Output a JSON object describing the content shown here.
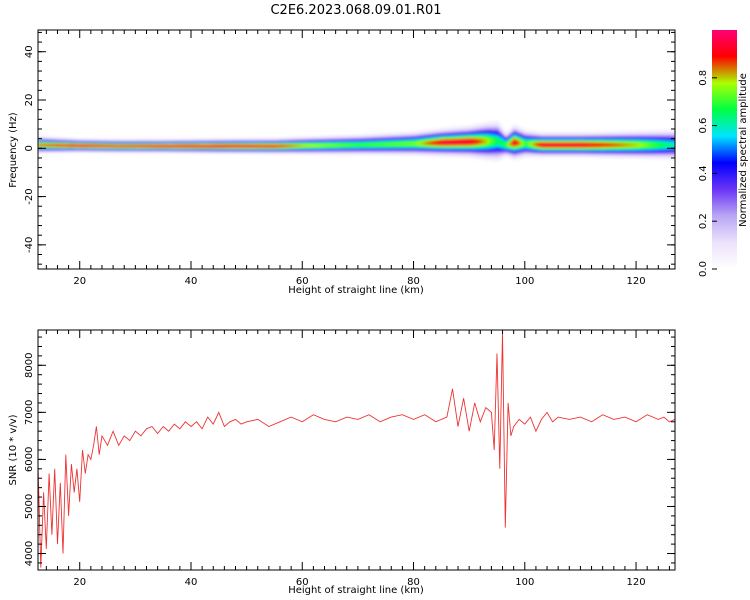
{
  "title": "C2E6.2023.068.09.01.R01",
  "chart_data": [
    {
      "type": "heatmap",
      "xlabel": "Height of straight line (km)",
      "ylabel": "Frequency (Hz)",
      "xlim": [
        12.5,
        127
      ],
      "ylim": [
        -50,
        49
      ],
      "xticks": [
        20,
        40,
        60,
        80,
        100,
        120
      ],
      "yticks": [
        -40,
        -20,
        0,
        20,
        40
      ],
      "grid": false,
      "colorbar": {
        "label": "Normalized spectral amplitude",
        "range": [
          0,
          1
        ],
        "ticks": [
          "0.0",
          "0.2",
          "0.4",
          "0.6",
          "0.8"
        ],
        "colormap": [
          "#ffffff",
          "#ece2fb",
          "#b9a6f4",
          "#6a34f6",
          "#0000ff",
          "#00e4ff",
          "#00ff44",
          "#aaff00",
          "#ff0000",
          "#ff0077"
        ]
      },
      "band": {
        "x": [
          12.5,
          20,
          27,
          35,
          45,
          55,
          60,
          70,
          80,
          85,
          90,
          93,
          95,
          96.5,
          98,
          100,
          103,
          110,
          120,
          127
        ],
        "center_hz": [
          1.5,
          1.2,
          1.0,
          1.0,
          1.0,
          1.0,
          1.2,
          1.5,
          2.0,
          2.5,
          2.8,
          3.0,
          3.0,
          1.5,
          2.5,
          2.0,
          1.5,
          1.5,
          1.5,
          1.5
        ],
        "half_width_hz": [
          2.5,
          2.0,
          2.0,
          2.0,
          2.2,
          2.3,
          2.6,
          3.0,
          3.5,
          4.0,
          4.5,
          5.5,
          6.0,
          3.5,
          5.0,
          4.0,
          3.5,
          3.5,
          4.0,
          4.5
        ],
        "peak_amplitude": [
          0.85,
          0.95,
          0.9,
          0.95,
          0.95,
          0.92,
          0.8,
          0.7,
          0.75,
          0.95,
          0.95,
          0.8,
          0.65,
          0.7,
          0.95,
          0.7,
          0.95,
          0.95,
          0.8,
          0.6
        ]
      }
    },
    {
      "type": "line",
      "xlabel": "Height of straight line (km)",
      "ylabel": "SNR (10 * v/v)",
      "xlim": [
        12.5,
        127
      ],
      "ylim": [
        3650,
        8750
      ],
      "xticks": [
        20,
        40,
        60,
        80,
        100,
        120
      ],
      "yticks": [
        4000,
        5000,
        6000,
        7000,
        8000
      ],
      "grid": false,
      "series": [
        {
          "color": "#ee3333",
          "x": [
            12.5,
            13,
            13.5,
            14,
            14.5,
            15,
            15.5,
            16,
            16.5,
            17,
            17.5,
            18,
            18.5,
            19,
            19.5,
            20,
            20.5,
            21,
            21.5,
            22,
            22.5,
            23,
            23.5,
            24,
            25,
            26,
            27,
            28,
            29,
            30,
            31,
            32,
            33,
            34,
            35,
            36,
            37,
            38,
            39,
            40,
            41,
            42,
            43,
            44,
            45,
            46,
            47,
            48,
            49,
            50,
            52,
            54,
            56,
            58,
            60,
            62,
            64,
            66,
            68,
            70,
            72,
            74,
            76,
            78,
            80,
            82,
            84,
            86,
            87,
            88,
            89,
            90,
            91,
            92,
            93,
            94,
            94.5,
            95,
            95.5,
            96,
            96.5,
            97,
            97.5,
            98,
            99,
            100,
            101,
            102,
            103,
            104,
            105,
            106,
            108,
            110,
            112,
            114,
            116,
            118,
            120,
            122,
            124,
            125,
            126,
            127
          ],
          "y": [
            5900,
            3700,
            5300,
            4100,
            5700,
            4400,
            5800,
            4200,
            5500,
            4000,
            6100,
            4800,
            5900,
            5300,
            5800,
            5100,
            6200,
            5700,
            6100,
            6000,
            6300,
            6700,
            6100,
            6500,
            6300,
            6600,
            6300,
            6500,
            6400,
            6600,
            6500,
            6650,
            6700,
            6550,
            6700,
            6600,
            6750,
            6650,
            6800,
            6700,
            6800,
            6650,
            6900,
            6750,
            7000,
            6700,
            6800,
            6850,
            6750,
            6800,
            6850,
            6700,
            6800,
            6900,
            6800,
            6950,
            6850,
            6800,
            6900,
            6850,
            6950,
            6800,
            6900,
            6950,
            6850,
            6950,
            6800,
            6900,
            7500,
            6700,
            7300,
            6600,
            7200,
            6800,
            7100,
            7000,
            6200,
            8250,
            5800,
            8700,
            4550,
            7200,
            6500,
            6700,
            6850,
            6750,
            6900,
            6600,
            6850,
            7000,
            6800,
            6900,
            6850,
            6900,
            6800,
            6950,
            6850,
            6900,
            6800,
            6950,
            6850,
            6900,
            6800,
            6850
          ]
        }
      ]
    }
  ]
}
